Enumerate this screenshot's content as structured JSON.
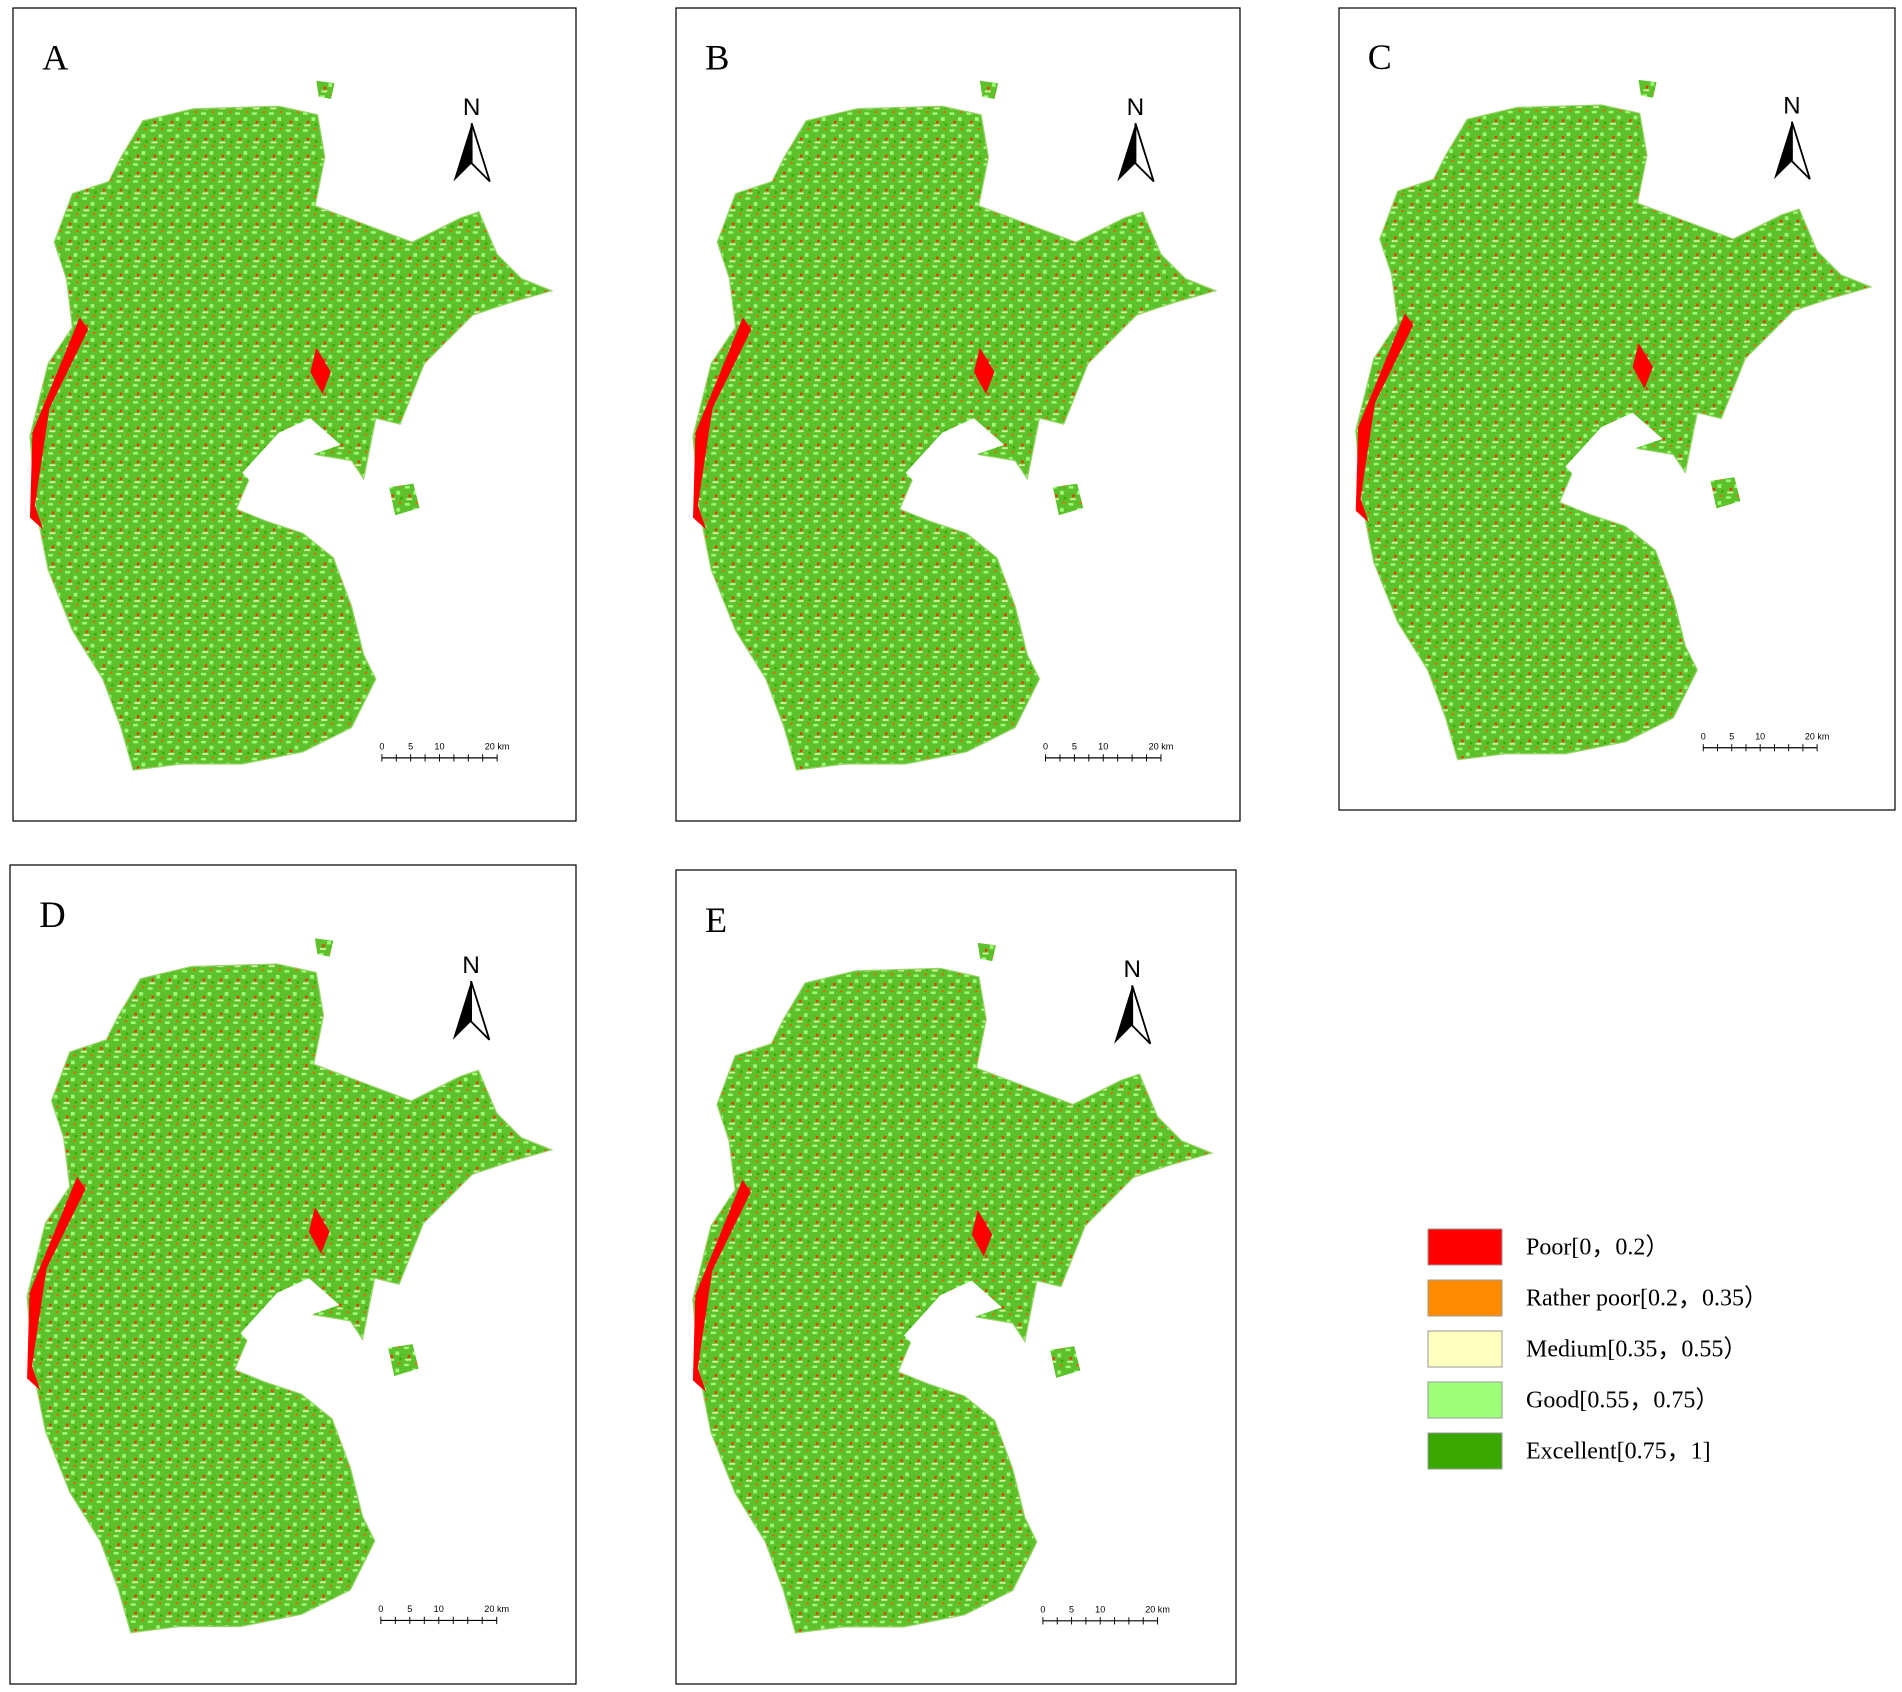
{
  "panels": [
    {
      "label": "A"
    },
    {
      "label": "B"
    },
    {
      "label": "C"
    },
    {
      "label": "D"
    },
    {
      "label": "E"
    }
  ],
  "north_label": "N",
  "scale_bar": {
    "labels": [
      "0",
      "5",
      "10",
      "20 km"
    ]
  },
  "legend": [
    {
      "label": "Poor[0，0.2）",
      "color": "#ff0000"
    },
    {
      "label": "Rather poor[0.2，0.35）",
      "color": "#ff8c00"
    },
    {
      "label": "Medium[0.35，0.55）",
      "color": "#ffffc0"
    },
    {
      "label": "Good[0.55，0.75）",
      "color": "#a0ff78"
    },
    {
      "label": "Excellent[0.75，1]",
      "color": "#38a800"
    }
  ]
}
